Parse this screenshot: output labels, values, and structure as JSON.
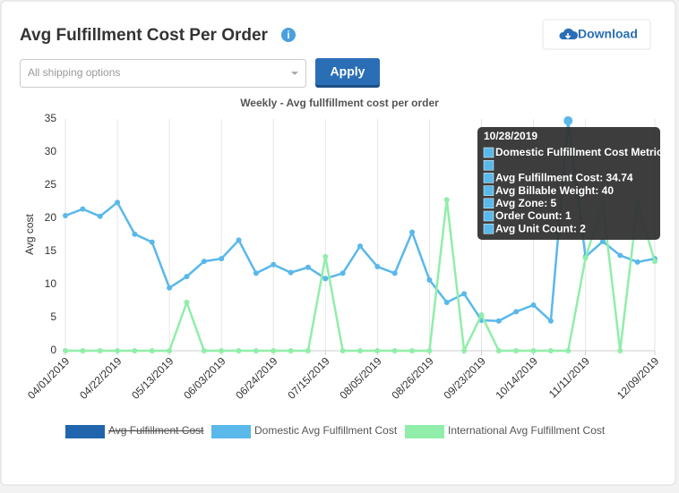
{
  "header": {
    "title": "Avg Fulfillment Cost Per Order",
    "download": "Download"
  },
  "filters": {
    "shipping_placeholder": "All shipping options",
    "apply": "Apply"
  },
  "chart_data": {
    "type": "line",
    "title": "Weekly - Avg fullfillment cost per order",
    "y_label": "Avg cost",
    "categories": [
      "04/01/2019",
      null,
      null,
      "04/22/2019",
      null,
      null,
      "05/13/2019",
      null,
      null,
      "06/03/2019",
      null,
      null,
      "06/24/2019",
      null,
      null,
      "07/15/2019",
      null,
      null,
      "08/05/2019",
      null,
      null,
      "08/26/2019",
      null,
      null,
      "09/23/2019",
      null,
      null,
      "10/14/2019",
      null,
      null,
      "11/11/2019",
      null,
      null,
      null,
      "12/09/2019"
    ],
    "series": [
      {
        "name": "Avg Fulfillment Cost",
        "color": "#2166ac",
        "visible": false,
        "values": [
          null,
          null,
          null,
          null,
          null,
          null,
          null,
          null,
          null,
          null,
          null,
          null,
          null,
          null,
          null,
          null,
          null,
          null,
          null,
          null,
          null,
          null,
          null,
          null,
          null,
          null,
          null,
          null,
          null,
          null,
          null,
          null,
          null,
          null,
          null
        ]
      },
      {
        "name": "Domestic Avg Fulfillment Cost",
        "color": "#5ab8ea",
        "visible": true,
        "values": [
          20.4,
          21.4,
          20.3,
          22.4,
          17.6,
          16.4,
          9.5,
          11.2,
          13.5,
          13.9,
          16.7,
          11.7,
          13,
          11.8,
          12.6,
          10.9,
          11.7,
          15.8,
          12.7,
          11.7,
          17.9,
          10.7,
          7.3,
          8.6,
          4.6,
          4.5,
          5.9,
          6.9,
          4.5,
          34.74,
          14.2,
          16.5,
          14.4,
          13.4,
          13.9
        ]
      },
      {
        "name": "International Avg Fulfillment Cost",
        "color": "#90eeaa",
        "visible": true,
        "values": [
          0,
          0,
          0,
          0,
          0,
          0,
          0,
          7.3,
          0,
          0,
          0,
          0,
          0,
          0,
          0,
          14.2,
          0,
          0,
          0,
          0,
          0,
          0,
          22.8,
          0,
          5.4,
          0,
          0,
          0,
          0,
          0,
          14,
          22.2,
          0,
          22.2,
          13.5
        ]
      }
    ],
    "ylim": [
      0,
      35
    ],
    "yticks": [
      0,
      5,
      10,
      15,
      20,
      25,
      30,
      35
    ],
    "grid": "x",
    "legend": "bottom",
    "highlight": {
      "series": 1,
      "index": 29
    },
    "tooltip": {
      "title": "10/28/2019",
      "lines": [
        "Domestic Fulfillment Cost Metrics",
        "Avg Fulfillment Cost: 34.74",
        "Avg Billable Weight: 40",
        "Avg Zone: 5",
        "Order Count: 1",
        "Avg Unit Count: 2"
      ]
    }
  }
}
